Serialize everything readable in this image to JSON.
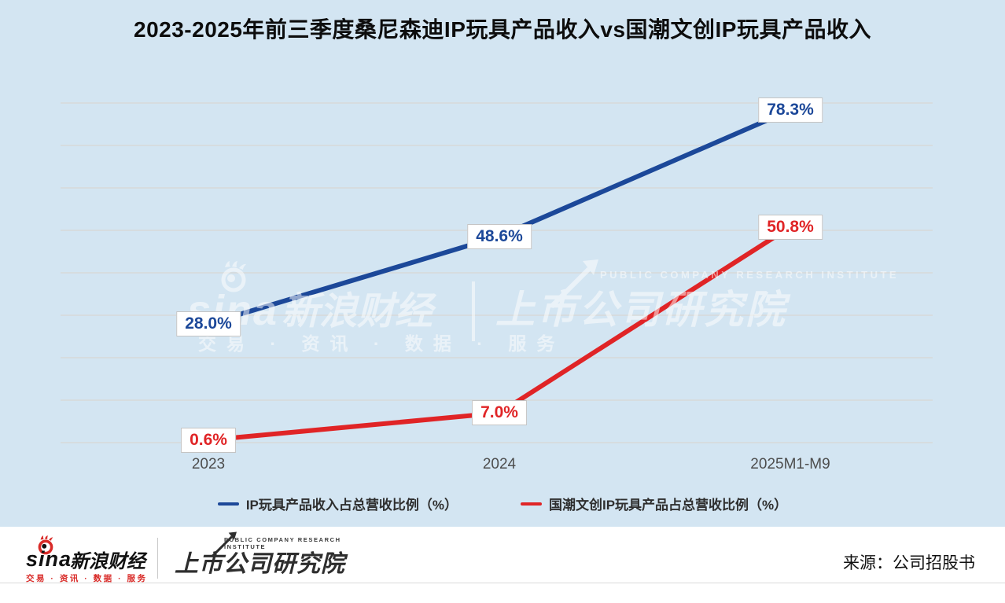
{
  "title": "2023-2025年前三季度桑尼森迪IP玩具产品收入vs国潮文创IP玩具产品收入",
  "chart_data": {
    "type": "line",
    "categories": [
      "2023",
      "2024",
      "2025M1-M9"
    ],
    "series": [
      {
        "name": "IP玩具产品收入占总营收比例（%）",
        "values": [
          28.0,
          48.6,
          78.3
        ],
        "color": "#1c4899"
      },
      {
        "name": "国潮文创IP玩具产品占总营收比例（%）",
        "values": [
          0.6,
          7.0,
          50.8
        ],
        "color": "#e02426"
      }
    ],
    "ylim": [
      0,
      80
    ],
    "grid": true,
    "grid_step": 10,
    "legend_position": "bottom",
    "label_format": "one-decimal-percent"
  },
  "watermark": {
    "sina_word": "sina",
    "sina_cn": "新浪财经",
    "sina_tagline": "交易 · 资讯 · 数据 · 服务",
    "pcri_en": "PUBLIC COMPANY RESEARCH INSTITUTE",
    "pcri_cn": "上市公司研究院"
  },
  "footer": {
    "sina_word": "sina",
    "sina_cn": "新浪财经",
    "sina_tagline": "交易 · 资讯 · 数据 · 服务",
    "pcri_en": "PUBLIC COMPANY RESEARCH INSTITUTE",
    "pcri_cn": "上市公司研究院",
    "source": "来源：公司招股书"
  },
  "colors": {
    "background": "#d3e5f2",
    "grid": "#d9d3cc",
    "series_blue": "#1c4899",
    "series_red": "#e02426",
    "axis_label": "#4d4d4d",
    "label_border": "#c4c4c4",
    "footer_rule": "#d9d9d9"
  }
}
